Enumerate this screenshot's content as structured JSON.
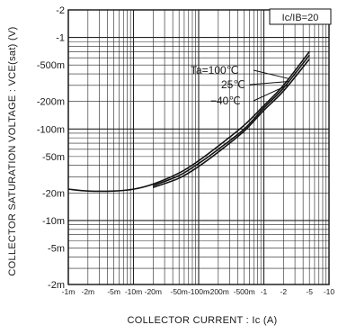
{
  "chart_data": {
    "type": "line",
    "x_scale": "log",
    "y_scale": "log",
    "xlabel": "COLLECTOR  CURRENT : Ic  (A)",
    "ylabel": "COLLECTOR SATURATION VOLTAGE : VCE(sat) (V)",
    "xlim": [
      -0.001,
      -10
    ],
    "ylim": [
      -0.002,
      -2
    ],
    "x_ticks": [
      -0.001,
      -0.002,
      -0.005,
      -0.01,
      -0.02,
      -0.05,
      -0.1,
      -0.2,
      -0.5,
      -1,
      -2,
      -5,
      -10
    ],
    "x_tick_labels": [
      "-1m",
      "-2m",
      "-5m",
      "-10m",
      "-20m",
      "-50m",
      "-100m",
      "-200m",
      "-500m",
      "-1",
      "-2",
      "-5",
      "-10"
    ],
    "y_ticks": [
      -2,
      -1,
      -0.5,
      -0.2,
      -0.1,
      -0.05,
      -0.02,
      -0.01,
      -0.005,
      -0.002
    ],
    "y_tick_labels": [
      "-2",
      "-1",
      "-500m",
      "-200m",
      "-100m",
      "-50m",
      "-20m",
      "-10m",
      "-5m",
      "-2m"
    ],
    "grid": true,
    "condition_label": "Ic/IB=20",
    "series": [
      {
        "name": "Ta=100℃",
        "x": [
          -0.001,
          -0.002,
          -0.005,
          -0.01,
          -0.02,
          -0.05,
          -0.1,
          -0.2,
          -0.5,
          -1,
          -2,
          -5
        ],
        "y": [
          -0.022,
          -0.021,
          -0.021,
          -0.022,
          -0.025,
          -0.033,
          -0.045,
          -0.065,
          -0.11,
          -0.18,
          -0.3,
          -0.7
        ]
      },
      {
        "name": "25℃",
        "x": [
          -0.02,
          -0.05,
          -0.1,
          -0.2,
          -0.5,
          -1,
          -2,
          -5
        ],
        "y": [
          -0.024,
          -0.031,
          -0.042,
          -0.06,
          -0.1,
          -0.17,
          -0.28,
          -0.64
        ]
      },
      {
        "name": "−40℃",
        "x": [
          -0.02,
          -0.05,
          -0.1,
          -0.2,
          -0.5,
          -1,
          -2,
          -5
        ],
        "y": [
          -0.023,
          -0.029,
          -0.039,
          -0.056,
          -0.095,
          -0.16,
          -0.26,
          -0.58
        ]
      }
    ],
    "annotations": [
      "Ta=100℃",
      "25℃",
      "−40℃"
    ]
  }
}
